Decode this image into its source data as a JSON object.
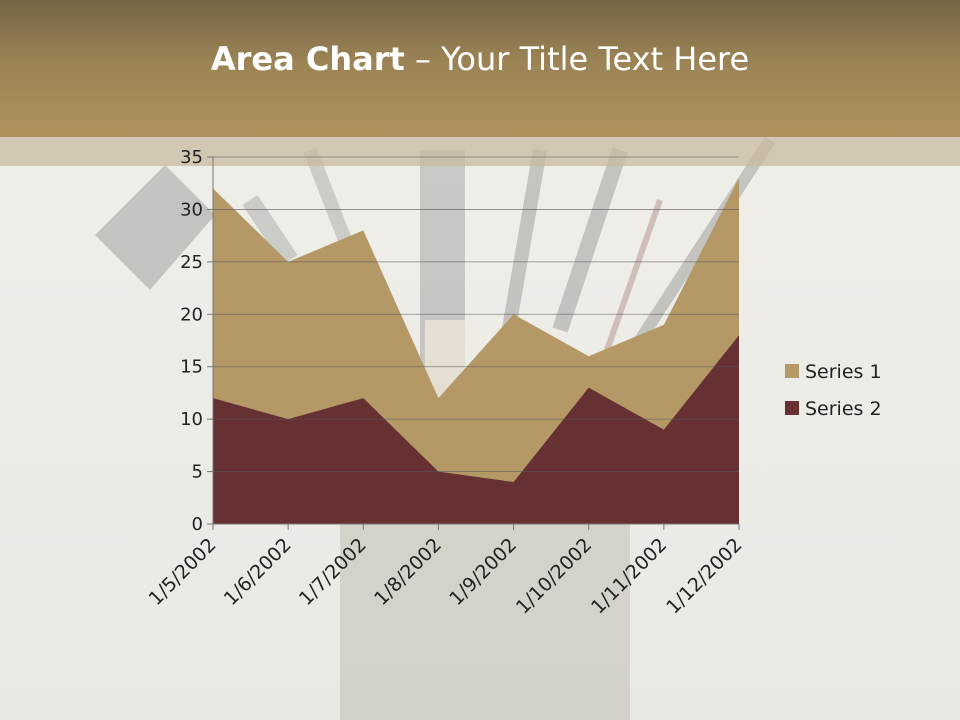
{
  "slide": {
    "title_bold": "Area Chart",
    "title_rest": " – Your Title Text Here"
  },
  "colors": {
    "header": "#9b8355",
    "series1": "#b49966",
    "series2": "#673033",
    "title_text": "#ffffff"
  },
  "chart_data": {
    "type": "area",
    "title": "",
    "xlabel": "",
    "ylabel": "",
    "ylim": [
      0,
      35
    ],
    "yticks": [
      0,
      5,
      10,
      15,
      20,
      25,
      30,
      35
    ],
    "grid": true,
    "stacked": false,
    "legend_position": "right",
    "categories": [
      "1/5/2002",
      "1/6/2002",
      "1/7/2002",
      "1/8/2002",
      "1/9/2002",
      "1/10/2002",
      "1/11/2002",
      "1/12/2002"
    ],
    "series": [
      {
        "name": "Series 1",
        "values": [
          32,
          25,
          28,
          12,
          20,
          16,
          19,
          33
        ],
        "color": "#b49966"
      },
      {
        "name": "Series 2",
        "values": [
          12,
          10,
          12,
          5,
          4,
          13,
          9,
          18
        ],
        "color": "#673033"
      }
    ]
  }
}
